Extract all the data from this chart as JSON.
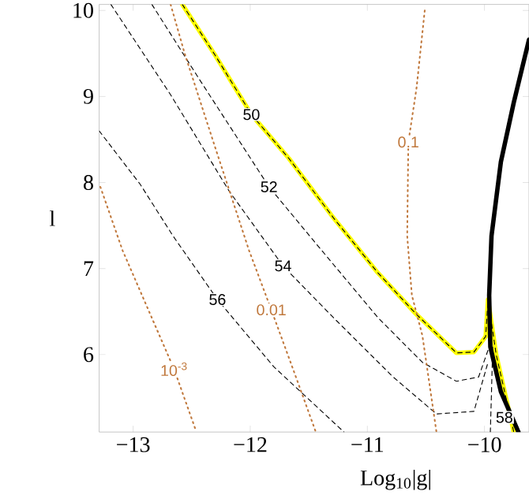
{
  "chart_data": {
    "type": "line",
    "xlabel": "Log$_{10}$|g|",
    "ylabel": "l",
    "xlim": [
      -13.29,
      -9.62
    ],
    "ylim": [
      5.1,
      10.07
    ],
    "xticks": [
      {
        "value": -13,
        "label": "−13"
      },
      {
        "value": -12,
        "label": "−12"
      },
      {
        "value": -11,
        "label": "−11"
      },
      {
        "value": -10,
        "label": "−10"
      }
    ],
    "yticks": [
      6,
      7,
      8,
      9,
      10
    ],
    "grid": false,
    "series": [
      {
        "color": "#ffff00",
        "line_style": "solid",
        "x": [
          -12.58,
          -12.3,
          -11.99,
          -11.67,
          -11.29,
          -10.91,
          -10.59,
          -10.24,
          -10.09,
          -9.99,
          -9.97,
          -9.9,
          -9.82,
          -9.75
        ],
        "values": [
          10.07,
          9.48,
          8.79,
          8.28,
          7.59,
          6.95,
          6.48,
          6.02,
          6.03,
          6.21,
          6.64,
          6.0,
          5.52,
          5.1
        ]
      },
      {
        "color": "#000000",
        "line_style": "solid",
        "x": [
          -9.62,
          -9.75,
          -9.86,
          -9.94,
          -9.96,
          -9.95,
          -9.86,
          -9.71
        ],
        "values": [
          9.66,
          8.93,
          8.24,
          7.38,
          6.69,
          6.09,
          5.57,
          5.1
        ]
      },
      {
        "color": "#000000",
        "line_style": "dashed",
        "x": [
          -12.58,
          -12.3,
          -11.99,
          -11.67,
          -11.29,
          -10.91,
          -10.59,
          -10.24,
          -10.09,
          -9.99,
          -9.97,
          -9.9,
          -9.82,
          -9.75
        ],
        "values": [
          10.07,
          9.48,
          8.79,
          8.28,
          7.59,
          6.95,
          6.48,
          6.02,
          6.03,
          6.21,
          6.64,
          6.0,
          5.52,
          5.1
        ]
      },
      {
        "color": "#000000",
        "line_style": "dashed",
        "x": [
          -12.84,
          -12.43,
          -11.84,
          -11.42,
          -10.91,
          -10.53,
          -10.24,
          -10.05,
          -9.96
        ],
        "values": [
          10.07,
          9.19,
          7.95,
          7.26,
          6.43,
          5.91,
          5.69,
          5.74,
          6.09
        ]
      },
      {
        "color": "#000000",
        "line_style": "dashed",
        "x": [
          -13.19,
          -12.68,
          -12.18,
          -11.72,
          -11.29,
          -10.78,
          -10.41,
          -10.09,
          -9.97
        ],
        "values": [
          10.07,
          9.02,
          7.9,
          7.03,
          6.43,
          5.74,
          5.31,
          5.34,
          5.91
        ]
      },
      {
        "color": "#000000",
        "line_style": "dashed",
        "x": [
          -13.29,
          -12.94,
          -12.66,
          -12.28,
          -11.8,
          -11.2
        ],
        "values": [
          8.6,
          7.98,
          7.38,
          6.64,
          5.86,
          5.1
        ]
      },
      {
        "color": "#000000",
        "line_style": "dashed",
        "x": [
          -9.93,
          -9.94,
          -9.95
        ],
        "values": [
          6.09,
          5.57,
          5.1
        ]
      },
      {
        "color": "#c0783c",
        "line_style": "dotted",
        "x": [
          -13.28,
          -13.09,
          -12.87,
          -12.65,
          -12.47
        ],
        "values": [
          7.95,
          7.21,
          6.52,
          5.83,
          5.14
        ]
      },
      {
        "color": "#c0783c",
        "line_style": "dotted",
        "x": [
          -12.68,
          -12.56,
          -12.3,
          -12.01,
          -11.82,
          -11.61,
          -11.44
        ],
        "values": [
          10.07,
          9.5,
          8.41,
          7.21,
          6.52,
          5.74,
          5.1
        ]
      },
      {
        "color": "#c0783c",
        "line_style": "dotted",
        "x": [
          -10.51,
          -10.58,
          -10.65,
          -10.66,
          -10.62,
          -10.53,
          -10.41
        ],
        "values": [
          10.0,
          9.1,
          8.47,
          7.38,
          6.69,
          6.22,
          5.1
        ]
      }
    ],
    "annotations": [
      {
        "text": "50",
        "x": -11.99,
        "y": 8.79
      },
      {
        "text": "52",
        "x": -11.84,
        "y": 7.95
      },
      {
        "text": "54",
        "x": -11.72,
        "y": 7.03
      },
      {
        "text": "56",
        "x": -12.28,
        "y": 6.64
      },
      {
        "text": "58",
        "x": -9.83,
        "y": 5.27
      },
      {
        "text": "10$^{-3}$",
        "x": -12.65,
        "y": 5.83
      },
      {
        "text": "0.01",
        "x": -11.82,
        "y": 6.52
      },
      {
        "text": "0.1",
        "x": -10.65,
        "y": 8.47
      }
    ]
  }
}
